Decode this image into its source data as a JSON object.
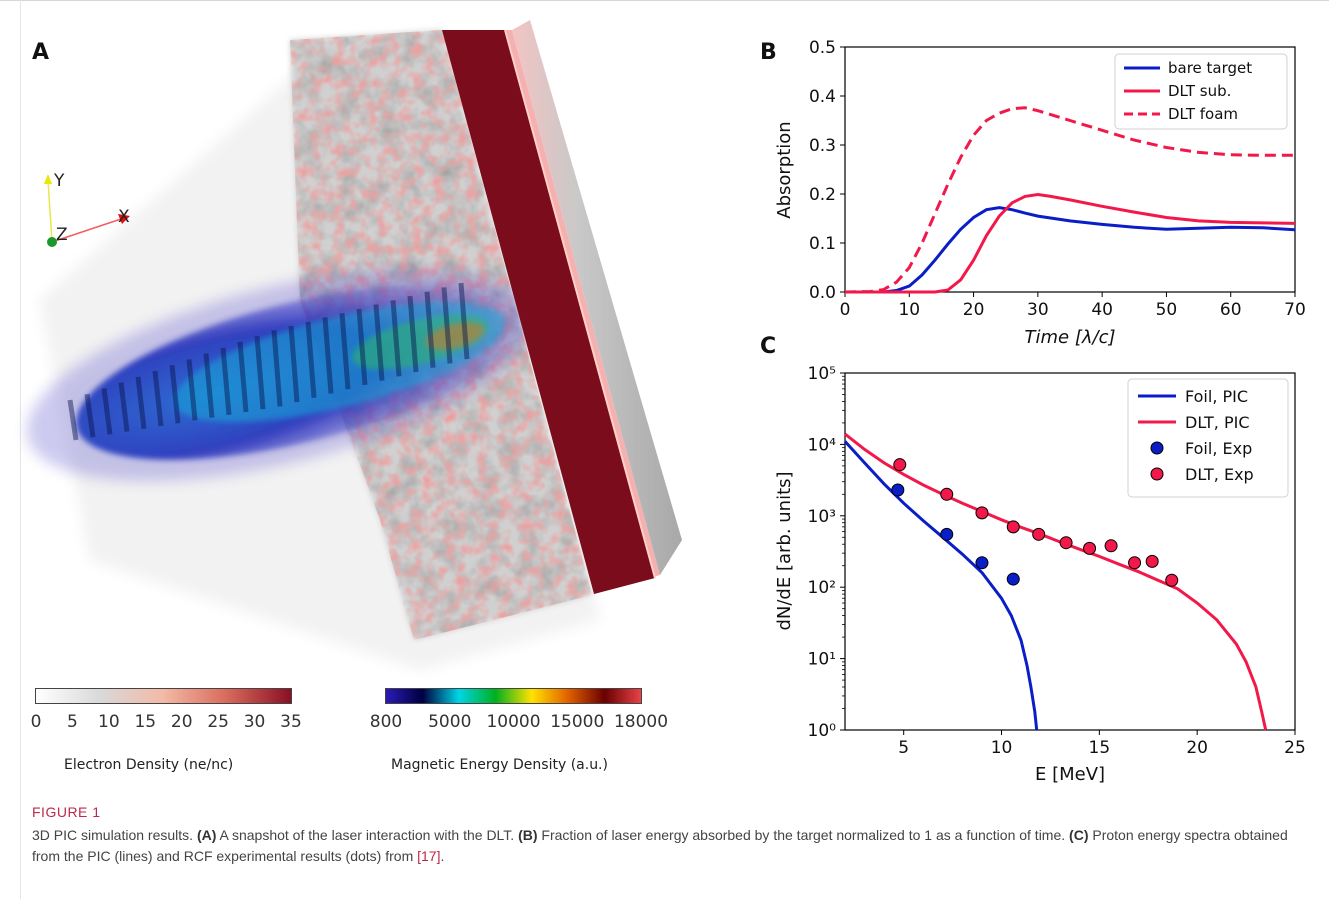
{
  "panel_a": {
    "letter": "A",
    "axes": {
      "y": "Y",
      "x": "X",
      "z": "Z"
    },
    "colorbar_electron": {
      "ticks": [
        "0",
        "5",
        "10",
        "15",
        "20",
        "25",
        "30",
        "35"
      ],
      "label": "Electron Density (ne/nc)",
      "colors": [
        "#ffffff",
        "#d9d9d9",
        "#f3b9a6",
        "#d86a5c",
        "#8a0f23"
      ]
    },
    "colorbar_magnetic": {
      "ticks": [
        "800",
        "5000",
        "10000",
        "15000",
        "18000"
      ],
      "label": "Magnetic Energy Density (a.u.)",
      "colors": [
        "#2a1bb4",
        "#000040",
        "#00d5e6",
        "#00b020",
        "#ffe200",
        "#e26000",
        "#6a0000",
        "#e8424a"
      ]
    }
  },
  "panel_b": {
    "letter": "B",
    "ylabel": "Absorption",
    "xlabel": "Time [λ/c]",
    "xticks": [
      "0",
      "10",
      "20",
      "30",
      "40",
      "50",
      "60",
      "70"
    ],
    "yticks": [
      "0.0",
      "0.1",
      "0.2",
      "0.3",
      "0.4",
      "0.5"
    ]
  },
  "panel_c": {
    "letter": "C",
    "ylabel": "dN/dE [arb. units]",
    "xlabel": "E [MeV]",
    "xticks": [
      "5",
      "10",
      "15",
      "20",
      "25"
    ],
    "yticks": [
      "10⁰",
      "10¹",
      "10²",
      "10³",
      "10⁴",
      "10⁵"
    ]
  },
  "chart_data": [
    {
      "type": "line",
      "xlabel": "Time [λ/c]",
      "ylabel": "Absorption",
      "xlim": [
        0,
        70
      ],
      "ylim": [
        0,
        0.5
      ],
      "legend_position": "top-right",
      "series": [
        {
          "name": "bare target",
          "color": "#0a1ec8",
          "style": "solid",
          "x": [
            0,
            6,
            8,
            10,
            12,
            14,
            16,
            18,
            20,
            22,
            24,
            26,
            28,
            30,
            35,
            40,
            45,
            50,
            55,
            60,
            65,
            70
          ],
          "y": [
            0,
            0,
            0.003,
            0.012,
            0.035,
            0.065,
            0.098,
            0.128,
            0.152,
            0.168,
            0.172,
            0.168,
            0.161,
            0.155,
            0.145,
            0.138,
            0.132,
            0.128,
            0.13,
            0.132,
            0.131,
            0.127
          ]
        },
        {
          "name": "DLT sub.",
          "color": "#f2194a",
          "style": "solid",
          "x": [
            0,
            14,
            16,
            18,
            20,
            22,
            24,
            26,
            28,
            30,
            32,
            35,
            40,
            45,
            50,
            55,
            60,
            65,
            70
          ],
          "y": [
            0,
            0,
            0.004,
            0.025,
            0.065,
            0.115,
            0.155,
            0.182,
            0.195,
            0.199,
            0.195,
            0.188,
            0.175,
            0.163,
            0.152,
            0.145,
            0.142,
            0.141,
            0.14
          ]
        },
        {
          "name": "DLT foam",
          "color": "#f2194a",
          "style": "dashed",
          "x": [
            0,
            4,
            6,
            8,
            10,
            12,
            14,
            16,
            18,
            20,
            22,
            24,
            26,
            28,
            30,
            35,
            40,
            45,
            50,
            55,
            60,
            65,
            70
          ],
          "y": [
            0,
            0.001,
            0.005,
            0.02,
            0.05,
            0.1,
            0.16,
            0.22,
            0.275,
            0.32,
            0.35,
            0.365,
            0.374,
            0.376,
            0.37,
            0.35,
            0.33,
            0.31,
            0.295,
            0.285,
            0.28,
            0.279,
            0.279
          ]
        }
      ]
    },
    {
      "type": "line",
      "xlabel": "E [MeV]",
      "ylabel": "dN/dE [arb. units]",
      "xlim": [
        2,
        25
      ],
      "ylim": [
        1,
        100000
      ],
      "yscale": "log",
      "legend_position": "top-right",
      "series": [
        {
          "name": "Foil, PIC",
          "color": "#0a1ec8",
          "style": "line",
          "x": [
            2,
            3,
            4,
            5,
            6,
            7,
            8,
            9,
            10,
            10.5,
            11,
            11.3,
            11.5,
            11.7,
            11.8
          ],
          "y": [
            11000,
            5500,
            2800,
            1500,
            850,
            500,
            290,
            160,
            70,
            40,
            18,
            8,
            4,
            1.8,
            1
          ]
        },
        {
          "name": "DLT, PIC",
          "color": "#f2194a",
          "style": "line",
          "x": [
            2,
            3,
            4,
            5,
            6,
            7,
            8,
            9,
            10,
            11,
            12,
            13,
            14,
            15,
            16,
            17,
            18,
            19,
            20,
            21,
            22,
            22.5,
            23,
            23.3,
            23.5
          ],
          "y": [
            14000,
            8500,
            5500,
            3800,
            2700,
            2000,
            1500,
            1150,
            880,
            690,
            550,
            430,
            340,
            270,
            210,
            165,
            125,
            95,
            60,
            35,
            16,
            9,
            4,
            1.8,
            1
          ]
        },
        {
          "name": "Foil, Exp",
          "color": "#0a1ec8",
          "style": "marker",
          "x": [
            4.7,
            7.2,
            9.0,
            10.6
          ],
          "y": [
            2300,
            550,
            220,
            130
          ]
        },
        {
          "name": "DLT, Exp",
          "color": "#f2194a",
          "style": "marker",
          "x": [
            4.8,
            7.2,
            9.0,
            10.6,
            11.9,
            13.3,
            14.5,
            15.6,
            16.8,
            17.7,
            18.7
          ],
          "y": [
            5200,
            2000,
            1100,
            700,
            550,
            420,
            350,
            380,
            220,
            230,
            125
          ]
        }
      ]
    }
  ],
  "caption": {
    "title": "FIGURE 1",
    "lead": "3D PIC simulation results. ",
    "a_tag": "(A)",
    "a_text": " A snapshot of the laser interaction with the DLT. ",
    "b_tag": "(B)",
    "b_text": " Fraction of laser energy absorbed by the target normalized to 1 as a function of time. ",
    "c_tag": "(C)",
    "c_text": " Proton energy spectra obtained from the PIC (lines) and RCF experimental results (dots) from ",
    "ref": "[17]",
    "end": "."
  }
}
